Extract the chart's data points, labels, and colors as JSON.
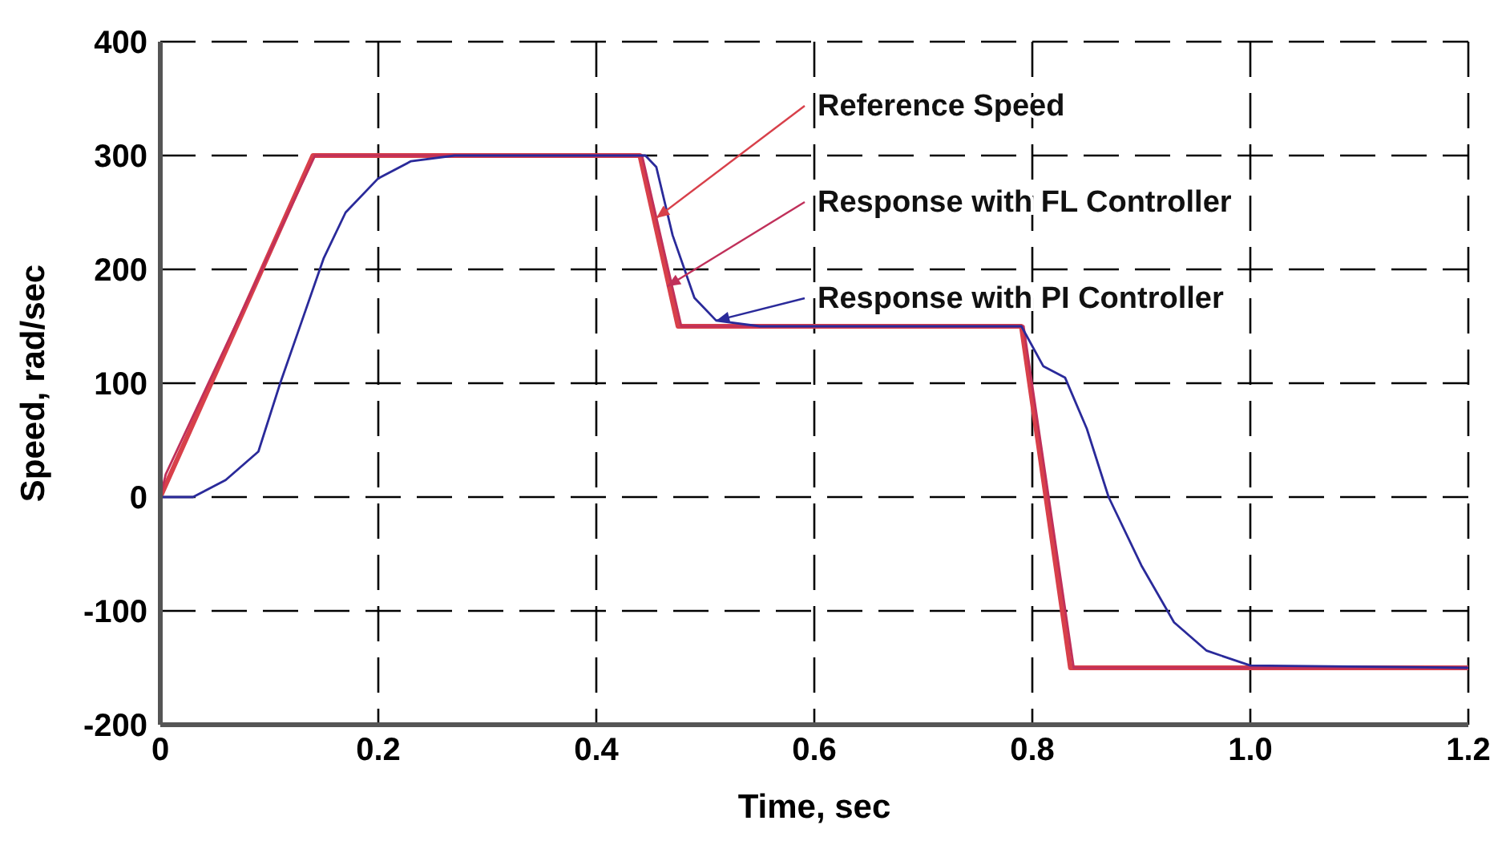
{
  "chart_data": {
    "type": "line",
    "xlabel": "Time, sec",
    "ylabel": "Speed, rad/sec",
    "xlim": [
      0,
      1.2
    ],
    "ylim": [
      -200,
      400
    ],
    "xticks": [
      0,
      0.2,
      0.4,
      0.6,
      0.8,
      {
        "value": 1,
        "label": "1.0"
      },
      1.2
    ],
    "yticks": [
      -200,
      -100,
      0,
      100,
      200,
      300,
      400
    ],
    "grid": true,
    "line_style": "solid",
    "marker": "none",
    "series": [
      {
        "color": "#d8404a",
        "x": [
          0,
          0.14,
          0.44,
          0.475,
          0.79,
          0.835,
          1.2
        ],
        "values": [
          0,
          300,
          300,
          150,
          150,
          -150,
          -150
        ]
      },
      {
        "color": "#c0305a",
        "x": [
          0,
          0.005,
          0.142,
          0.442,
          0.478,
          0.792,
          0.838,
          1.2
        ],
        "values": [
          0,
          20,
          300,
          300,
          150,
          150,
          -150,
          -150
        ]
      },
      {
        "color": "#2a2a9a",
        "x": [
          0,
          0.03,
          0.06,
          0.09,
          0.11,
          0.13,
          0.15,
          0.17,
          0.2,
          0.23,
          0.27,
          0.445,
          0.455,
          0.47,
          0.49,
          0.51,
          0.55,
          0.79,
          0.81,
          0.83,
          0.85,
          0.87,
          0.9,
          0.93,
          0.96,
          1.0,
          1.2
        ],
        "values": [
          0,
          0,
          15,
          40,
          100,
          155,
          210,
          250,
          280,
          295,
          300,
          300,
          290,
          230,
          175,
          155,
          150,
          150,
          115,
          105,
          60,
          0,
          -60,
          -110,
          -135,
          -148,
          -150
        ]
      }
    ],
    "annotations": [
      {
        "text": "Reference Speed",
        "x": 0.455,
        "y": 245
      },
      {
        "text": "Response with FL Controller",
        "x": 0.465,
        "y": 185
      },
      {
        "text": "Response with PI Controller",
        "x": 0.51,
        "y": 155
      }
    ]
  }
}
